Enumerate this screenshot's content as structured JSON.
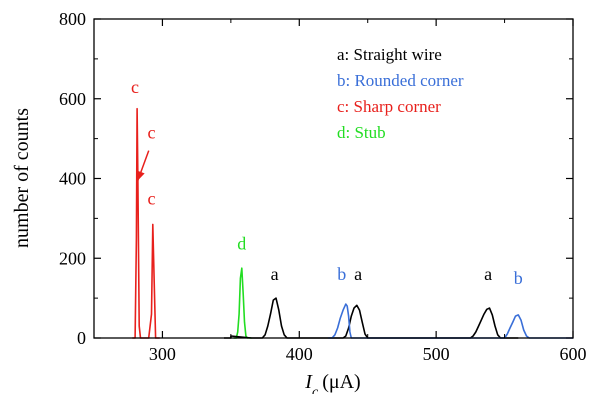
{
  "chart_data": {
    "type": "line",
    "title": "",
    "xlabel_main": "I",
    "xlabel_sub": "c",
    "xlabel_unit": "(μA)",
    "ylabel": "number of counts",
    "xlim": [
      250,
      600
    ],
    "ylim": [
      0,
      800
    ],
    "xticks": [
      {
        "value": 300,
        "label": "300"
      },
      {
        "value": 400,
        "label": "400"
      },
      {
        "value": 500,
        "label": "500"
      },
      {
        "value": 600,
        "label": "600"
      }
    ],
    "yticks": [
      {
        "value": 0,
        "label": "0"
      },
      {
        "value": 200,
        "label": "200"
      },
      {
        "value": 400,
        "label": "400"
      },
      {
        "value": 600,
        "label": "600"
      },
      {
        "value": 800,
        "label": "800"
      }
    ],
    "grid": false,
    "legend_position": "top-right",
    "legend": [
      {
        "key": "a",
        "text": "a: Straight wire",
        "color": "#000000"
      },
      {
        "key": "b",
        "text": "b: Rounded corner",
        "color": "#3a6fd8"
      },
      {
        "key": "c",
        "text": "c: Sharp corner",
        "color": "#e8201c"
      },
      {
        "key": "d",
        "text": "d: Stub",
        "color": "#22dd22"
      }
    ],
    "series": [
      {
        "key": "c",
        "color": "#e8201c",
        "points": [
          [
            278,
            0
          ],
          [
            280,
            0
          ],
          [
            281,
            250
          ],
          [
            281.5,
            575
          ],
          [
            282,
            420
          ],
          [
            283,
            30
          ],
          [
            284,
            0
          ],
          [
            290,
            0
          ],
          [
            292,
            60
          ],
          [
            293,
            285
          ],
          [
            294,
            140
          ],
          [
            295,
            0
          ],
          [
            298,
            0
          ]
        ]
      },
      {
        "key": "d",
        "color": "#22dd22",
        "points": [
          [
            352,
            0
          ],
          [
            354,
            0
          ],
          [
            355,
            15
          ],
          [
            356,
            60
          ],
          [
            357,
            150
          ],
          [
            358,
            175
          ],
          [
            359,
            110
          ],
          [
            360,
            40
          ],
          [
            361,
            5
          ],
          [
            362,
            0
          ],
          [
            365,
            0
          ]
        ]
      },
      {
        "key": "a",
        "color": "#000000",
        "points": [
          [
            345,
            0
          ],
          [
            350,
            0
          ],
          [
            350,
            5
          ],
          [
            365,
            0
          ],
          [
            373,
            0
          ],
          [
            375,
            8
          ],
          [
            377,
            30
          ],
          [
            379,
            60
          ],
          [
            381,
            95
          ],
          [
            383,
            100
          ],
          [
            385,
            70
          ],
          [
            387,
            30
          ],
          [
            389,
            8
          ],
          [
            391,
            0
          ],
          [
            426,
            0
          ],
          [
            432,
            0
          ],
          [
            434,
            5
          ],
          [
            436,
            25
          ],
          [
            438,
            55
          ],
          [
            440,
            75
          ],
          [
            442,
            82
          ],
          [
            444,
            70
          ],
          [
            446,
            40
          ],
          [
            448,
            10
          ],
          [
            450,
            0
          ],
          [
            525,
            0
          ],
          [
            527,
            5
          ],
          [
            529,
            15
          ],
          [
            531,
            30
          ],
          [
            533,
            45
          ],
          [
            535,
            60
          ],
          [
            537,
            72
          ],
          [
            539,
            75
          ],
          [
            541,
            58
          ],
          [
            543,
            30
          ],
          [
            545,
            8
          ],
          [
            547,
            0
          ],
          [
            560,
            0
          ]
        ]
      },
      {
        "key": "b",
        "color": "#3a6fd8",
        "points": [
          [
            421,
            0
          ],
          [
            424,
            0
          ],
          [
            426,
            8
          ],
          [
            428,
            25
          ],
          [
            430,
            50
          ],
          [
            432,
            70
          ],
          [
            434,
            85
          ],
          [
            435,
            80
          ],
          [
            436,
            55
          ],
          [
            437,
            15
          ],
          [
            438,
            0
          ],
          [
            545,
            0
          ],
          [
            550,
            0
          ],
          [
            552,
            10
          ],
          [
            554,
            25
          ],
          [
            556,
            40
          ],
          [
            558,
            55
          ],
          [
            560,
            58
          ],
          [
            562,
            45
          ],
          [
            564,
            20
          ],
          [
            566,
            5
          ],
          [
            568,
            0
          ],
          [
            600,
            0
          ]
        ]
      }
    ],
    "annotations": [
      {
        "text": "c",
        "color": "#e8201c",
        "x": 280,
        "y": 615
      },
      {
        "text": "c",
        "color": "#e8201c",
        "x": 292,
        "y": 500
      },
      {
        "text": "c",
        "color": "#e8201c",
        "x": 292,
        "y": 335
      },
      {
        "text": "d",
        "color": "#22dd22",
        "x": 358,
        "y": 222
      },
      {
        "text": "a",
        "color": "#000000",
        "x": 382,
        "y": 145
      },
      {
        "text": "b",
        "color": "#3a6fd8",
        "x": 431,
        "y": 145
      },
      {
        "text": "a",
        "color": "#000000",
        "x": 443,
        "y": 145
      },
      {
        "text": "a",
        "color": "#000000",
        "x": 538,
        "y": 145
      },
      {
        "text": "b",
        "color": "#3a6fd8",
        "x": 560,
        "y": 135
      }
    ],
    "arrow": {
      "color": "#e8201c",
      "from": [
        290,
        470
      ],
      "to": [
        282,
        395
      ]
    }
  }
}
